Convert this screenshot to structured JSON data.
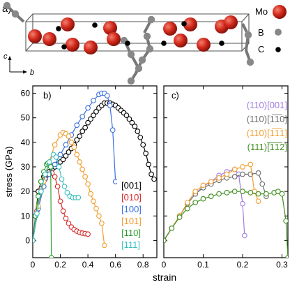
{
  "panel_a": {
    "label": "a)",
    "legend": [
      {
        "name": "Mo",
        "color": "#d42a1c"
      },
      {
        "name": "B",
        "color": "#808080"
      },
      {
        "name": "C",
        "color": "#000000"
      }
    ],
    "axis_c": "c",
    "axis_b": "b"
  },
  "colors": {
    "black": "#000000",
    "red": "#d62a2a",
    "blue": "#3a6fe0",
    "orange": "#f29e2e",
    "green": "#2ea02e",
    "cyan": "#3cbfbf",
    "purple": "#a07de0",
    "gray": "#6e6e6e",
    "darkgreen": "#3f8f1f"
  },
  "chart_data": [
    {
      "type": "line",
      "panel": "b)",
      "xlabel": "strain",
      "ylabel": "stress (GPa)",
      "xlim": [
        0,
        0.9
      ],
      "ylim": [
        -7,
        63
      ],
      "xticks": [
        "0",
        "0.2",
        "0.4",
        "0.6",
        "0.8"
      ],
      "yticks": [
        "0",
        "10",
        "20",
        "30",
        "40",
        "50",
        "60"
      ],
      "series": [
        {
          "name": "[001]",
          "color": "#000000",
          "x": [
            0.0,
            0.02,
            0.04,
            0.06,
            0.08,
            0.1,
            0.12,
            0.14,
            0.16,
            0.18,
            0.2,
            0.22,
            0.24,
            0.26,
            0.28,
            0.3,
            0.32,
            0.34,
            0.36,
            0.38,
            0.4,
            0.42,
            0.44,
            0.46,
            0.48,
            0.5,
            0.52,
            0.54,
            0.56,
            0.58,
            0.6,
            0.62,
            0.64,
            0.66,
            0.68,
            0.7,
            0.72,
            0.74,
            0.76,
            0.78,
            0.8,
            0.82,
            0.84,
            0.86,
            0.88
          ],
          "y": [
            0,
            10,
            20,
            24,
            26,
            27,
            28,
            29,
            30,
            31,
            32,
            33,
            34.5,
            36,
            37.5,
            39,
            41,
            42.5,
            44.5,
            46,
            48,
            49.5,
            51,
            52.5,
            54,
            55,
            56,
            56,
            56,
            55.5,
            55,
            54,
            53,
            52,
            51,
            49.5,
            48,
            46.5,
            44.5,
            42,
            39,
            35.5,
            31,
            27,
            25
          ]
        },
        {
          "name": "[010]",
          "color": "#d62a2a",
          "x": [
            0.0,
            0.03,
            0.06,
            0.09,
            0.12,
            0.14,
            0.16,
            0.18,
            0.2,
            0.22,
            0.24,
            0.26,
            0.28,
            0.3,
            0.32,
            0.34,
            0.36,
            0.38,
            0.4
          ],
          "y": [
            0,
            12,
            21,
            25,
            27,
            27.5,
            26,
            22,
            16,
            12,
            9,
            7,
            5.5,
            4.5,
            3.8,
            3.3,
            3,
            2.8,
            2.6
          ]
        },
        {
          "name": "[100]",
          "color": "#3a6fe0",
          "x": [
            0.0,
            0.04,
            0.08,
            0.12,
            0.16,
            0.2,
            0.24,
            0.28,
            0.32,
            0.36,
            0.4,
            0.44,
            0.48,
            0.5,
            0.52,
            0.54,
            0.56,
            0.58,
            0.6
          ],
          "y": [
            0,
            13,
            22,
            27,
            31,
            35,
            39,
            43,
            47,
            50.5,
            54,
            57,
            59.5,
            60,
            60,
            59,
            55,
            45,
            24
          ]
        },
        {
          "name": "[101]",
          "color": "#f29e2e",
          "x": [
            0.0,
            0.04,
            0.08,
            0.12,
            0.16,
            0.2,
            0.22,
            0.24,
            0.26,
            0.28,
            0.3,
            0.32,
            0.34,
            0.36,
            0.38,
            0.4,
            0.42,
            0.44,
            0.46,
            0.48,
            0.5,
            0.52
          ],
          "y": [
            0,
            14,
            24,
            32,
            39,
            43,
            44,
            43.5,
            42.5,
            40,
            38,
            35,
            32,
            29,
            26,
            23,
            19,
            16,
            13,
            10,
            7,
            -2
          ]
        },
        {
          "name": "[110]",
          "color": "#2ea02e",
          "x": [
            0.0,
            0.02,
            0.04,
            0.06,
            0.08,
            0.1,
            0.11,
            0.12,
            0.13,
            0.135
          ],
          "y": [
            0,
            10,
            18,
            24,
            28,
            31,
            31.5,
            31.5,
            30,
            -7
          ]
        },
        {
          "name": "[111]",
          "color": "#3cbfbf",
          "x": [
            0.0,
            0.03,
            0.06,
            0.09,
            0.12,
            0.15,
            0.17,
            0.19,
            0.21,
            0.23,
            0.25,
            0.27,
            0.29,
            0.31,
            0.33
          ],
          "y": [
            0,
            11,
            20,
            27,
            32,
            35,
            34,
            30,
            25,
            22,
            19.5,
            18,
            17.5,
            17.5,
            17.5
          ]
        }
      ]
    },
    {
      "type": "line",
      "panel": "c)",
      "xlabel": "",
      "xlim": [
        0,
        0.315
      ],
      "ylim": [
        -7,
        63
      ],
      "xticks": [
        "0",
        "0.1",
        "0.2",
        "0.3"
      ],
      "series": [
        {
          "name": "(110)[001]",
          "color": "#a07de0",
          "x": [
            0.0,
            0.02,
            0.04,
            0.06,
            0.08,
            0.1,
            0.12,
            0.14,
            0.16,
            0.18,
            0.19,
            0.2,
            0.205
          ],
          "y": [
            0,
            5,
            10,
            15,
            19,
            22,
            24,
            26.5,
            28,
            29,
            27,
            15,
            2
          ]
        },
        {
          "name": "(110)[1-10]",
          "color": "#6e6e6e",
          "x": [
            0.0,
            0.02,
            0.04,
            0.06,
            0.08,
            0.1,
            0.12,
            0.14,
            0.16,
            0.18,
            0.2,
            0.22,
            0.24,
            0.25,
            0.26
          ],
          "y": [
            0,
            5,
            10,
            15,
            19,
            21.5,
            23,
            24.5,
            25.5,
            26,
            27,
            27,
            27.5,
            23,
            18
          ]
        },
        {
          "name": "(110)[1-11]",
          "color": "#f29e2e",
          "x": [
            0.0,
            0.02,
            0.04,
            0.06,
            0.08,
            0.1,
            0.12,
            0.14,
            0.16,
            0.18,
            0.2,
            0.22,
            0.23,
            0.24
          ],
          "y": [
            0,
            5,
            10,
            15.5,
            20,
            22.5,
            24,
            25.5,
            27,
            29,
            30,
            31,
            20,
            16
          ]
        },
        {
          "name": "(111)[-1-12]",
          "color": "#3f8f1f",
          "x": [
            0.0,
            0.02,
            0.04,
            0.06,
            0.08,
            0.1,
            0.12,
            0.14,
            0.16,
            0.18,
            0.2,
            0.22,
            0.24,
            0.26,
            0.28,
            0.29,
            0.3,
            0.31,
            0.315
          ],
          "y": [
            0,
            5,
            9.5,
            13,
            15.5,
            17,
            18,
            19,
            19.5,
            20,
            20,
            19.5,
            19,
            19,
            19.5,
            20,
            19,
            8,
            -7
          ]
        }
      ],
      "legend": [
        "(110)[001]",
        "(110)[1̅1̅0]",
        "(110)[1̅1̅1]",
        "(111)[̅1̅1̅2]"
      ]
    }
  ],
  "legend_b": [
    "[001]",
    "[010]",
    "[100]",
    "[101]",
    "[110]",
    "[111]"
  ],
  "legend_c": [
    "(110)[001]",
    "(110)[1",
    "1",
    "0]"
  ]
}
